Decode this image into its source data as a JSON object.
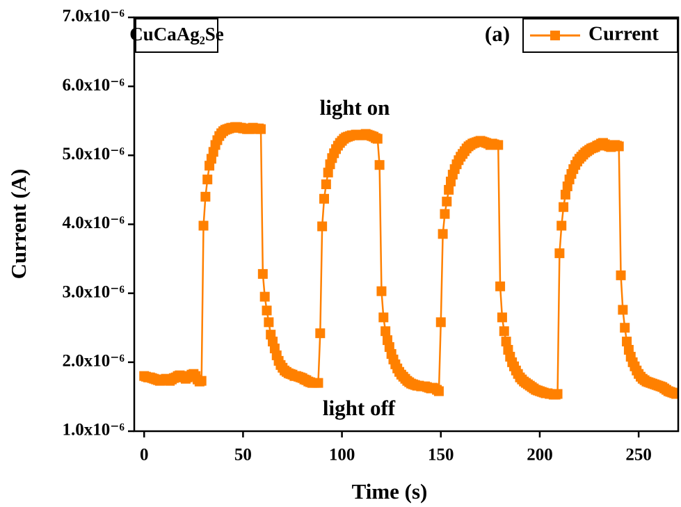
{
  "chart_data": {
    "type": "line",
    "x_label": "Time (s)",
    "y_label": "Current (A)",
    "sample_label": "CuCaAg₂Se",
    "panel_label": "(a)",
    "annotations": [
      "light on",
      "light off"
    ],
    "xlim": [
      -5,
      270
    ],
    "ylim": [
      1e-06,
      7e-06
    ],
    "xticks": [
      0,
      50,
      100,
      150,
      200,
      250
    ],
    "yticks": [
      {
        "value": 1e-06,
        "label": "1.0x10⁻⁶"
      },
      {
        "value": 2e-06,
        "label": "2.0x10⁻⁶"
      },
      {
        "value": 3e-06,
        "label": "3.0x10⁻⁶"
      },
      {
        "value": 4e-06,
        "label": "4.0x10⁻⁶"
      },
      {
        "value": 5e-06,
        "label": "5.0x10⁻⁶"
      },
      {
        "value": 6e-06,
        "label": "6.0x10⁻⁶"
      },
      {
        "value": 7e-06,
        "label": "7.0x10⁻⁶"
      }
    ],
    "legend": "upper right",
    "x": [
      0,
      1,
      2,
      3,
      4,
      5,
      6,
      7,
      8,
      9,
      10,
      11,
      12,
      13,
      14,
      15,
      16,
      17,
      18,
      19,
      20,
      21,
      22,
      23,
      24,
      25,
      26,
      27,
      28,
      29,
      30,
      31,
      32,
      33,
      34,
      35,
      36,
      37,
      38,
      39,
      40,
      41,
      42,
      43,
      44,
      45,
      46,
      47,
      48,
      49,
      50,
      51,
      52,
      53,
      54,
      55,
      56,
      57,
      58,
      59,
      60,
      61,
      62,
      63,
      64,
      65,
      66,
      67,
      68,
      69,
      70,
      71,
      72,
      73,
      74,
      75,
      76,
      77,
      78,
      79,
      80,
      81,
      82,
      83,
      84,
      85,
      86,
      87,
      88,
      89,
      90,
      91,
      92,
      93,
      94,
      95,
      96,
      97,
      98,
      99,
      100,
      101,
      102,
      103,
      104,
      105,
      106,
      107,
      108,
      109,
      110,
      111,
      112,
      113,
      114,
      115,
      116,
      117,
      118,
      119,
      120,
      121,
      122,
      123,
      124,
      125,
      126,
      127,
      128,
      129,
      130,
      131,
      132,
      133,
      134,
      135,
      136,
      137,
      138,
      139,
      140,
      141,
      142,
      143,
      144,
      145,
      146,
      147,
      148,
      149,
      150,
      151,
      152,
      153,
      154,
      155,
      156,
      157,
      158,
      159,
      160,
      161,
      162,
      163,
      164,
      165,
      166,
      167,
      168,
      169,
      170,
      171,
      172,
      173,
      174,
      175,
      176,
      177,
      178,
      179,
      180,
      181,
      182,
      183,
      184,
      185,
      186,
      187,
      188,
      189,
      190,
      191,
      192,
      193,
      194,
      195,
      196,
      197,
      198,
      199,
      200,
      201,
      202,
      203,
      204,
      205,
      206,
      207,
      208,
      209,
      210,
      211,
      212,
      213,
      214,
      215,
      216,
      217,
      218,
      219,
      220,
      221,
      222,
      223,
      224,
      225,
      226,
      227,
      228,
      229,
      230,
      231,
      232,
      233,
      234,
      235,
      236,
      237,
      238,
      239,
      240,
      241,
      242,
      243,
      244,
      245,
      246,
      247,
      248,
      249,
      250,
      251,
      252,
      253,
      254,
      255,
      256,
      257,
      258,
      259,
      260,
      261,
      262,
      263,
      264,
      265,
      266,
      267,
      268,
      269
    ],
    "series": [
      {
        "name": "Current",
        "color": "#ff8000",
        "values": [
          1.8e-06,
          1.79e-06,
          1.78e-06,
          1.78e-06,
          1.77e-06,
          1.76e-06,
          1.75e-06,
          1.74e-06,
          1.73e-06,
          1.74e-06,
          1.75e-06,
          1.76e-06,
          1.74e-06,
          1.73e-06,
          1.75e-06,
          1.77e-06,
          1.78e-06,
          1.8e-06,
          1.81e-06,
          1.8e-06,
          1.78e-06,
          1.76e-06,
          1.78e-06,
          1.8e-06,
          1.82e-06,
          1.83e-06,
          1.8e-06,
          1.75e-06,
          1.72e-06,
          1.73e-06,
          3.98e-06,
          4.4e-06,
          4.65e-06,
          4.85e-06,
          4.95e-06,
          5.05e-06,
          5.15e-06,
          5.22e-06,
          5.28e-06,
          5.32e-06,
          5.35e-06,
          5.37e-06,
          5.38e-06,
          5.39e-06,
          5.4e-06,
          5.4e-06,
          5.41e-06,
          5.41e-06,
          5.4e-06,
          5.4e-06,
          5.39e-06,
          5.39e-06,
          5.38e-06,
          5.38e-06,
          5.39e-06,
          5.4e-06,
          5.39e-06,
          5.38e-06,
          5.39e-06,
          5.38e-06,
          3.28e-06,
          2.95e-06,
          2.75e-06,
          2.58e-06,
          2.4e-06,
          2.3e-06,
          2.2e-06,
          2.1e-06,
          2.02e-06,
          1.96e-06,
          1.92e-06,
          1.88e-06,
          1.86e-06,
          1.84e-06,
          1.83e-06,
          1.82e-06,
          1.8e-06,
          1.8e-06,
          1.79e-06,
          1.78e-06,
          1.77e-06,
          1.75e-06,
          1.74e-06,
          1.72e-06,
          1.71e-06,
          1.7e-06,
          1.7e-06,
          1.7e-06,
          1.7e-06,
          2.42e-06,
          3.97e-06,
          4.37e-06,
          4.58e-06,
          4.75e-06,
          4.87e-06,
          4.96e-06,
          5.03e-06,
          5.09e-06,
          5.14e-06,
          5.18e-06,
          5.21e-06,
          5.24e-06,
          5.26e-06,
          5.27e-06,
          5.28e-06,
          5.29e-06,
          5.29e-06,
          5.3e-06,
          5.3e-06,
          5.29e-06,
          5.29e-06,
          5.3e-06,
          5.31e-06,
          5.3e-06,
          5.29e-06,
          5.28e-06,
          5.27e-06,
          5.25e-06,
          5.24e-06,
          4.86e-06,
          3.03e-06,
          2.65e-06,
          2.45e-06,
          2.32e-06,
          2.22e-06,
          2.12e-06,
          2.04e-06,
          1.97e-06,
          1.91e-06,
          1.86e-06,
          1.82e-06,
          1.79e-06,
          1.76e-06,
          1.73e-06,
          1.71e-06,
          1.69e-06,
          1.68e-06,
          1.67e-06,
          1.66e-06,
          1.66e-06,
          1.65e-06,
          1.65e-06,
          1.65e-06,
          1.64e-06,
          1.63e-06,
          1.62e-06,
          1.63e-06,
          1.62e-06,
          1.6e-06,
          1.58e-06,
          2.58e-06,
          3.86e-06,
          4.15e-06,
          4.33e-06,
          4.5e-06,
          4.62e-06,
          4.72e-06,
          4.8e-06,
          4.87e-06,
          4.93e-06,
          4.98e-06,
          5.02e-06,
          5.06e-06,
          5.1e-06,
          5.13e-06,
          5.15e-06,
          5.17e-06,
          5.18e-06,
          5.19e-06,
          5.2e-06,
          5.21e-06,
          5.2e-06,
          5.19e-06,
          5.18e-06,
          5.17e-06,
          5.15e-06,
          5.17e-06,
          5.16e-06,
          5.15e-06,
          5.15e-06,
          3.1e-06,
          2.65e-06,
          2.45e-06,
          2.3e-06,
          2.18e-06,
          2.08e-06,
          2e-06,
          1.94e-06,
          1.88e-06,
          1.83e-06,
          1.78e-06,
          1.75e-06,
          1.72e-06,
          1.7e-06,
          1.68e-06,
          1.66e-06,
          1.64e-06,
          1.62e-06,
          1.6e-06,
          1.59e-06,
          1.58e-06,
          1.57e-06,
          1.56e-06,
          1.55e-06,
          1.55e-06,
          1.54e-06,
          1.54e-06,
          1.53e-06,
          1.53e-06,
          1.54e-06,
          3.58e-06,
          3.98e-06,
          4.25e-06,
          4.43e-06,
          4.55e-06,
          4.65e-06,
          4.73e-06,
          4.8e-06,
          4.86e-06,
          4.91e-06,
          4.95e-06,
          4.98e-06,
          5.01e-06,
          5.04e-06,
          5.06e-06,
          5.08e-06,
          5.1e-06,
          5.11e-06,
          5.12e-06,
          5.14e-06,
          5.15e-06,
          5.17e-06,
          5.18e-06,
          5.16e-06,
          5.14e-06,
          5.13e-06,
          5.12e-06,
          5.13e-06,
          5.15e-06,
          5.14e-06,
          5.13e-06,
          3.26e-06,
          2.76e-06,
          2.5e-06,
          2.3e-06,
          2.18e-06,
          2.08e-06,
          2e-06,
          1.94e-06,
          1.88e-06,
          1.83e-06,
          1.79e-06,
          1.76e-06,
          1.74e-06,
          1.72e-06,
          1.71e-06,
          1.7e-06,
          1.69e-06,
          1.68e-06,
          1.67e-06,
          1.66e-06,
          1.65e-06,
          1.64e-06,
          1.62e-06,
          1.6e-06,
          1.58e-06,
          1.57e-06,
          1.56e-06,
          1.55e-06,
          1.54e-06
        ]
      }
    ]
  }
}
